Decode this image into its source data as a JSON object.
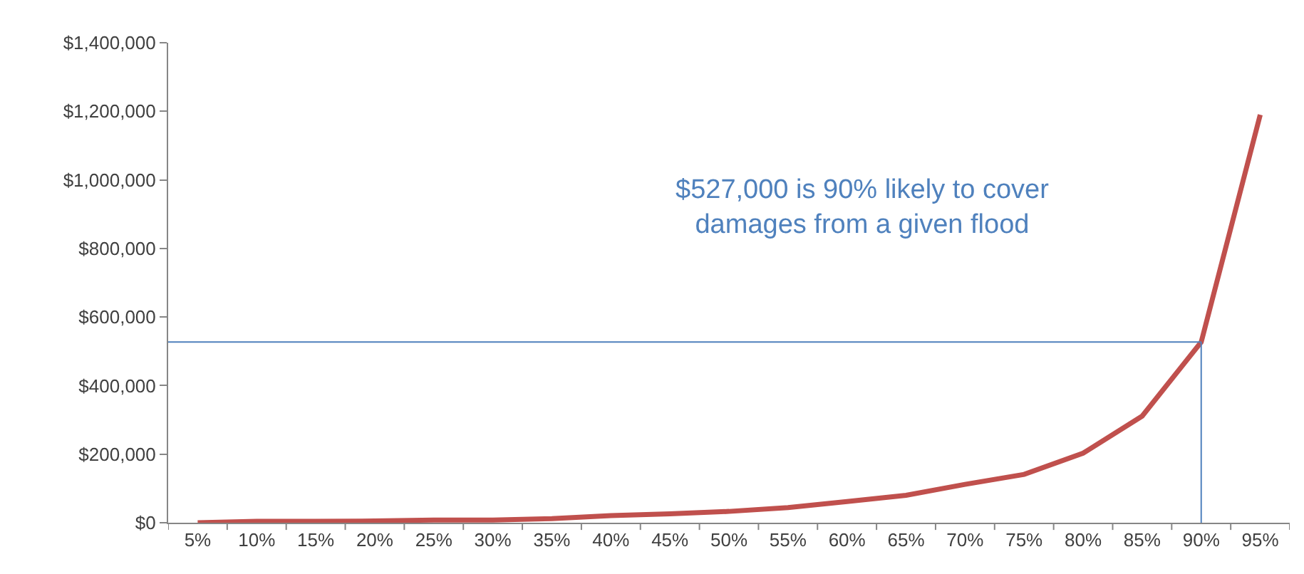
{
  "chart_data": {
    "type": "line",
    "categories": [
      "5%",
      "10%",
      "15%",
      "20%",
      "25%",
      "30%",
      "35%",
      "40%",
      "45%",
      "50%",
      "55%",
      "60%",
      "65%",
      "70%",
      "75%",
      "80%",
      "85%",
      "90%",
      "95%"
    ],
    "series": [
      {
        "color": "#c0504d",
        "values": [
          0,
          4000,
          4000,
          5000,
          8000,
          8000,
          12000,
          21000,
          26000,
          33000,
          44000,
          62000,
          80000,
          112000,
          141000,
          203000,
          311000,
          527000,
          1190000
        ]
      }
    ],
    "ylim": [
      0,
      1400000
    ],
    "yticks": [
      {
        "value": 0,
        "label": "$0"
      },
      {
        "value": 200000,
        "label": "$200,000"
      },
      {
        "value": 400000,
        "label": "$400,000"
      },
      {
        "value": 600000,
        "label": "$600,000"
      },
      {
        "value": 800000,
        "label": "$800,000"
      },
      {
        "value": 1000000,
        "label": "$1,000,000"
      },
      {
        "value": 1200000,
        "label": "$1,200,000"
      },
      {
        "value": 1400000,
        "label": "$1,400,000"
      }
    ],
    "legend": false,
    "marker": "none",
    "line_style": "solid",
    "ref_lines": [
      {
        "axis": "y",
        "value": 527000,
        "color": "#4f81bd"
      },
      {
        "axis": "x",
        "value": "90%",
        "color": "#4f81bd"
      }
    ],
    "annotations": [
      "$527,000 is 90% likely to cover\ndamages from a given flood"
    ]
  }
}
